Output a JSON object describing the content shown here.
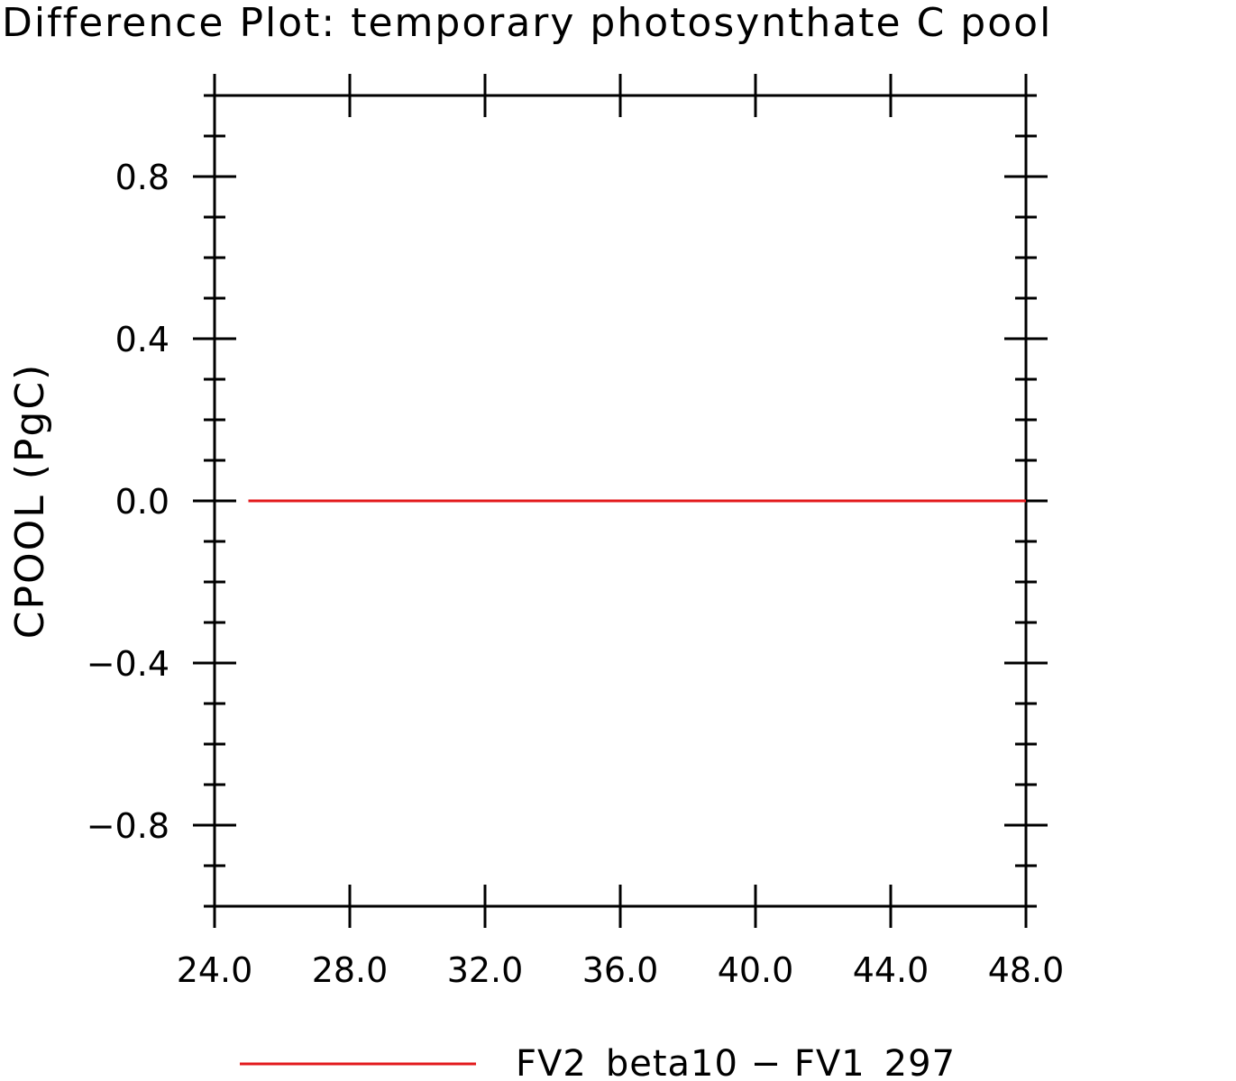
{
  "chart_data": {
    "type": "line",
    "title": "Difference Plot: temporary photosynthate C pool",
    "xlabel": "",
    "ylabel": "CPOOL  (PgC)",
    "xlim": [
      24,
      48
    ],
    "ylim": [
      -1,
      1
    ],
    "x_ticks": [
      24,
      28,
      32,
      36,
      40,
      44,
      48
    ],
    "x_tick_labels": [
      "24.0",
      "28.0",
      "32.0",
      "36.0",
      "40.0",
      "44.0",
      "48.0"
    ],
    "y_ticks": [
      -0.8,
      -0.4,
      0.0,
      0.4,
      0.8
    ],
    "y_tick_labels": [
      "−0.8",
      "−0.4",
      "0.0",
      "0.4",
      "0.8"
    ],
    "x_minor_step": 4,
    "y_minor_step": 0.1,
    "grid": false,
    "legend_position": "bottom",
    "series": [
      {
        "name": "FV2_beta10 − FV1_297",
        "color": "#e31a1c",
        "x": [
          25,
          48
        ],
        "y": [
          0.0,
          0.0
        ]
      }
    ]
  }
}
